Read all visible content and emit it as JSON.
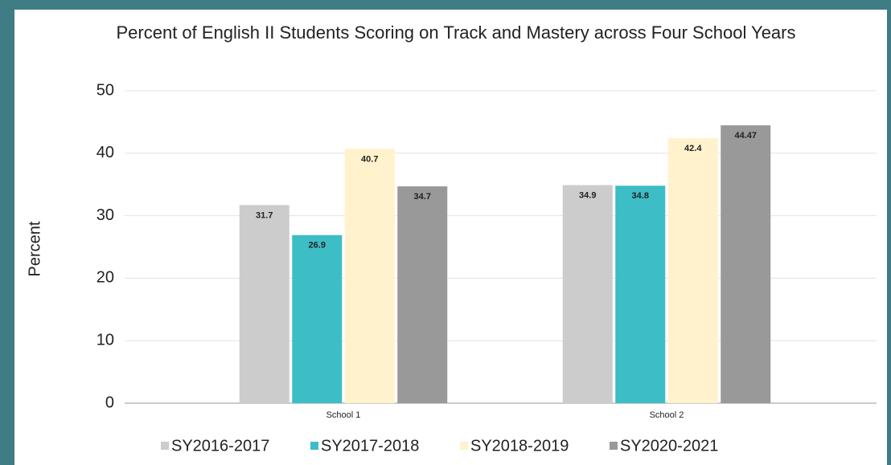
{
  "chart_data": {
    "type": "bar",
    "title": "Percent of English II Students Scoring on Track and Mastery across Four School Years",
    "y_label": "Percent",
    "categories": [
      "School 1",
      "School 2"
    ],
    "series": [
      {
        "name": "SY2016-2017",
        "color": "#cccccc",
        "values": [
          31.7,
          34.9
        ]
      },
      {
        "name": "SY2017-2018",
        "color": "#3dbdc6",
        "values": [
          26.9,
          34.8
        ]
      },
      {
        "name": "SY2018-2019",
        "color": "#fff2cc",
        "values": [
          40.7,
          42.4
        ]
      },
      {
        "name": "SY2020-2021",
        "color": "#999999",
        "values": [
          34.7,
          44.47
        ]
      }
    ],
    "ylim": [
      0,
      50
    ],
    "yticks": [
      0,
      10,
      20,
      30,
      40,
      50
    ],
    "grid": true,
    "legend": "bottom"
  }
}
